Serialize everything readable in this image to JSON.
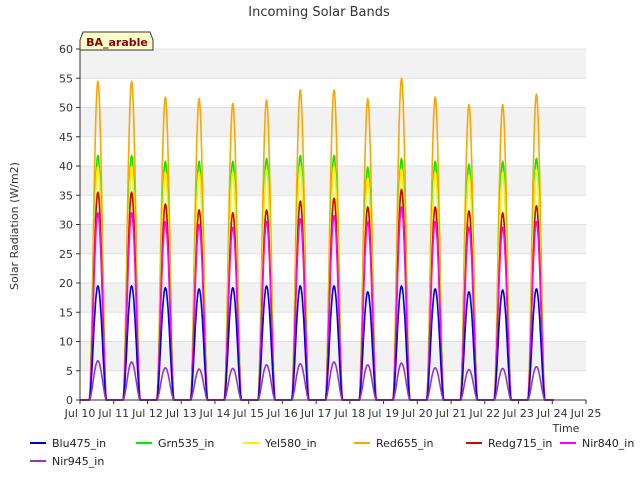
{
  "chart_data": {
    "type": "line",
    "title": "Incoming Solar Bands",
    "ylabel": "Solar Radiation (W/m2)",
    "xlabel": "Time",
    "site_tag": "BA_arable",
    "ylim": [
      0,
      60
    ],
    "xlim": [
      "Jul 10",
      "Jul 25"
    ],
    "y_ticks": [
      "0",
      "5",
      "10",
      "15",
      "20",
      "25",
      "30",
      "35",
      "40",
      "45",
      "50",
      "55",
      "60"
    ],
    "x_ticks": [
      "Jul 10",
      "Jul 11",
      "Jul 12",
      "Jul 13",
      "Jul 14",
      "Jul 15",
      "Jul 16",
      "Jul 17",
      "Jul 18",
      "Jul 19",
      "Jul 20",
      "Jul 21",
      "Jul 22",
      "Jul 23",
      "Jul 24",
      "Jul 25"
    ],
    "grid": "horizontal bands",
    "legend_position": "bottom",
    "days": [
      "Jul 10",
      "Jul 11",
      "Jul 12",
      "Jul 13",
      "Jul 14",
      "Jul 15",
      "Jul 16",
      "Jul 17",
      "Jul 18",
      "Jul 19",
      "Jul 20",
      "Jul 21",
      "Jul 22",
      "Jul 23"
    ],
    "series": [
      {
        "name": "Blu475_in",
        "color": "#0000dd",
        "daily_peaks": [
          19.5,
          19.5,
          19.2,
          19.0,
          19.2,
          19.5,
          19.5,
          19.5,
          18.5,
          19.5,
          19.0,
          18.5,
          18.8,
          19.0
        ]
      },
      {
        "name": "Grn535_in",
        "color": "#00ee00",
        "daily_peaks": [
          41.8,
          41.8,
          40.8,
          40.8,
          40.8,
          41.3,
          41.8,
          41.8,
          39.8,
          41.3,
          40.8,
          40.3,
          40.8,
          41.3
        ]
      },
      {
        "name": "Yel580_in",
        "color": "#ffee00",
        "daily_peaks": [
          40.0,
          40.0,
          39.0,
          39.0,
          39.0,
          39.5,
          40.0,
          40.0,
          38.0,
          39.5,
          39.0,
          38.5,
          39.0,
          39.5
        ]
      },
      {
        "name": "Red655_in",
        "color": "#ffa500",
        "daily_peaks": [
          54.5,
          54.5,
          51.8,
          51.5,
          50.7,
          51.3,
          53.0,
          53.0,
          51.5,
          55.0,
          51.8,
          50.5,
          50.5,
          52.3
        ]
      },
      {
        "name": "Redg715_in",
        "color": "#dd0000",
        "daily_peaks": [
          35.5,
          35.5,
          33.5,
          32.5,
          32.0,
          32.5,
          34.0,
          34.5,
          33.0,
          36.0,
          33.0,
          32.3,
          32.0,
          33.2
        ]
      },
      {
        "name": "Nir840_in",
        "color": "#ff00ff",
        "daily_peaks": [
          32.0,
          32.0,
          30.5,
          30.0,
          29.5,
          30.5,
          31.0,
          31.5,
          30.5,
          33.0,
          30.5,
          29.5,
          29.5,
          30.5
        ]
      },
      {
        "name": "Nir945_in",
        "color": "#9932cc",
        "daily_peaks": [
          6.7,
          6.5,
          5.5,
          5.3,
          5.4,
          6.0,
          6.2,
          6.5,
          6.0,
          6.3,
          5.5,
          5.2,
          5.4,
          5.7
        ]
      }
    ]
  }
}
